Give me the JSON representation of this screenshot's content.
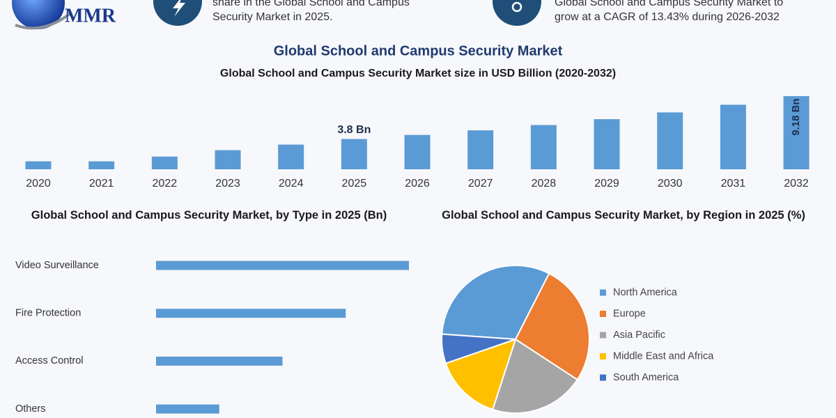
{
  "header": {
    "logo": "MMR",
    "stats": [
      {
        "lines": [
          "share in the Global School and Campus",
          "Security Market in 2025."
        ]
      },
      {
        "lines": [
          "Global School and Campus Security Market to",
          "grow at a CAGR of 13.43% during 2026-2032"
        ]
      }
    ]
  },
  "chart_data": [
    {
      "type": "bar",
      "title": "Global School and Campus Security Market",
      "subtitle": "Global School and Campus Security Market size in USD Billion (2020-2032)",
      "categories": [
        "2020",
        "2021",
        "2022",
        "2023",
        "2024",
        "2025",
        "2026",
        "2027",
        "2028",
        "2029",
        "2030",
        "2031",
        "2032"
      ],
      "values": [
        1.0,
        1.0,
        1.6,
        2.4,
        3.1,
        3.8,
        4.31,
        4.89,
        5.55,
        6.29,
        7.14,
        8.1,
        9.18
      ],
      "value_labels": [
        null,
        null,
        null,
        null,
        null,
        "3.8 Bn",
        null,
        null,
        null,
        null,
        null,
        null,
        "9.18 Bn"
      ],
      "color": "#5b9bd5"
    },
    {
      "type": "bar",
      "orientation": "horizontal",
      "title": "Global School and Campus Security Market, by Type in 2025 (Bn)",
      "categories": [
        "Video Surveillance",
        "Fire Protection",
        "Access Control",
        "Others"
      ],
      "values": [
        1.52,
        1.14,
        0.76,
        0.38
      ],
      "color": "#5b9bd5"
    },
    {
      "type": "pie",
      "title": "Global School and Campus Security Market, by Region in 2025 (%)",
      "categories": [
        "North America",
        "Europe",
        "Asia Pacific",
        "Middle East and Africa",
        "South America"
      ],
      "values": [
        31.4,
        26.7,
        20.8,
        14.7,
        6.4
      ],
      "colors": [
        "#5b9bd5",
        "#ed7d31",
        "#a5a5a5",
        "#ffc000",
        "#4472c4"
      ]
    }
  ]
}
